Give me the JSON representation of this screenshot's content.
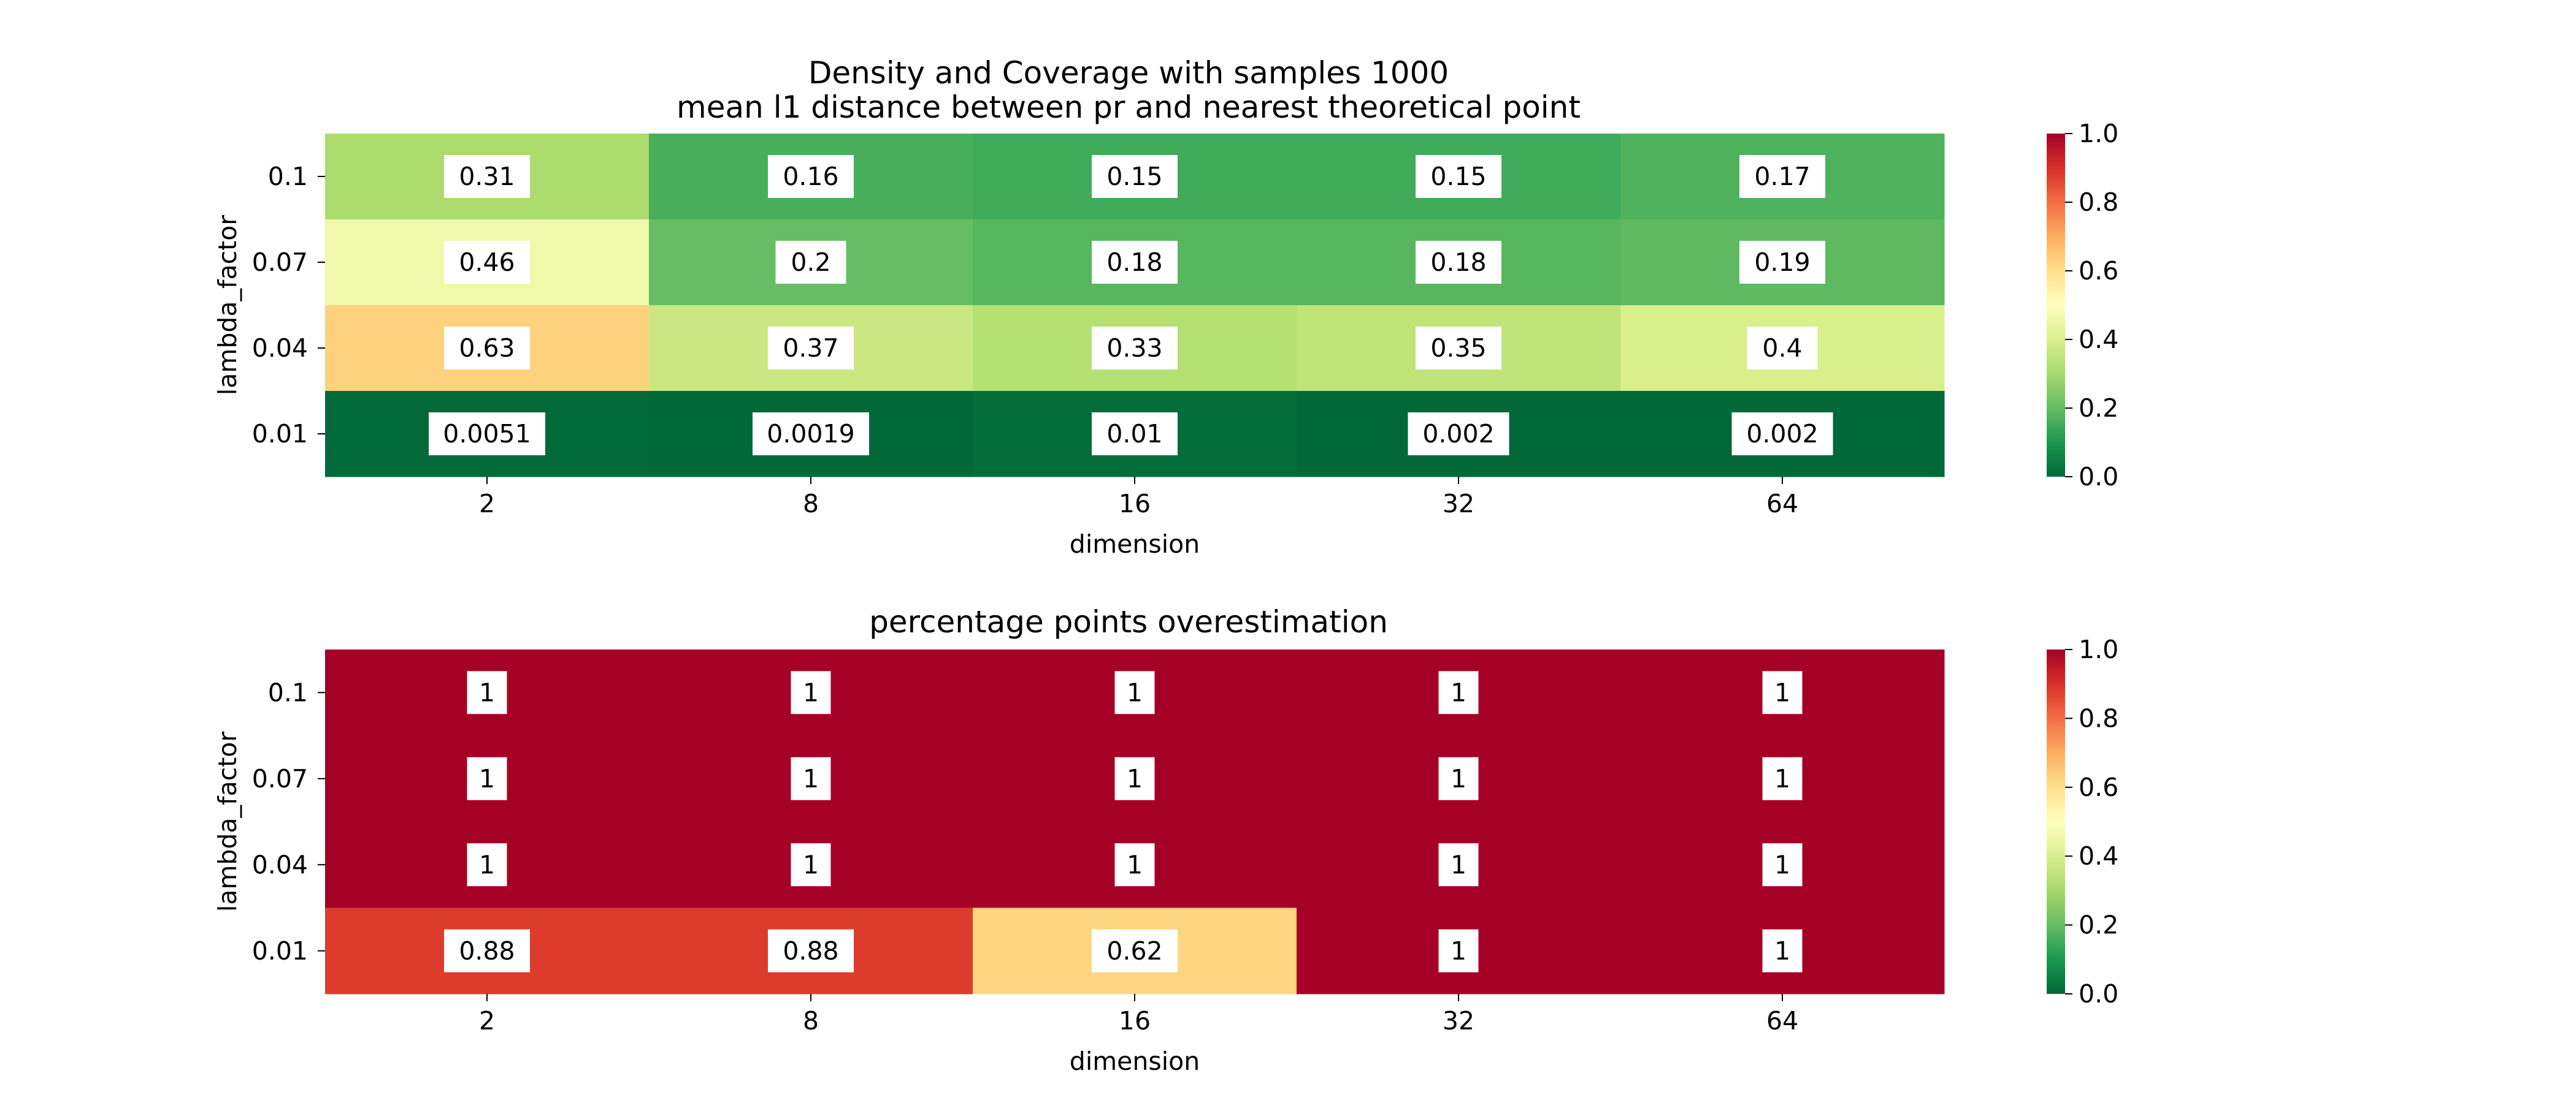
{
  "figure": {
    "title_line1": "Density and Coverage with samples 1000",
    "title_line2": "mean l1 distance between pr and nearest theoretical point"
  },
  "chart_data": [
    {
      "type": "heatmap",
      "title": "mean l1 distance between pr and nearest theoretical point",
      "xlabel": "dimension",
      "ylabel": "lambda_factor",
      "x_categories": [
        "2",
        "8",
        "16",
        "32",
        "64"
      ],
      "y_categories": [
        "0.1",
        "0.07",
        "0.04",
        "0.01"
      ],
      "values": [
        [
          0.31,
          0.16,
          0.15,
          0.15,
          0.17
        ],
        [
          0.46,
          0.2,
          0.18,
          0.18,
          0.19
        ],
        [
          0.63,
          0.37,
          0.33,
          0.35,
          0.4
        ],
        [
          0.0051,
          0.0019,
          0.01,
          0.002,
          0.002
        ]
      ],
      "cell_labels": [
        [
          "0.31",
          "0.16",
          "0.15",
          "0.15",
          "0.17"
        ],
        [
          "0.46",
          "0.2",
          "0.18",
          "0.18",
          "0.19"
        ],
        [
          "0.63",
          "0.37",
          "0.33",
          "0.35",
          "0.4"
        ],
        [
          "0.0051",
          "0.0019",
          "0.01",
          "0.002",
          "0.002"
        ]
      ],
      "colorscale": "RdYlGn_r",
      "vmin": 0.0,
      "vmax": 1.0,
      "colorbar_ticks": [
        "0.0",
        "0.2",
        "0.4",
        "0.6",
        "0.8",
        "1.0"
      ]
    },
    {
      "type": "heatmap",
      "title": "percentage points overestimation",
      "xlabel": "dimension",
      "ylabel": "lambda_factor",
      "x_categories": [
        "2",
        "8",
        "16",
        "32",
        "64"
      ],
      "y_categories": [
        "0.1",
        "0.07",
        "0.04",
        "0.01"
      ],
      "values": [
        [
          1,
          1,
          1,
          1,
          1
        ],
        [
          1,
          1,
          1,
          1,
          1
        ],
        [
          1,
          1,
          1,
          1,
          1
        ],
        [
          0.88,
          0.88,
          0.62,
          1,
          1
        ]
      ],
      "cell_labels": [
        [
          "1",
          "1",
          "1",
          "1",
          "1"
        ],
        [
          "1",
          "1",
          "1",
          "1",
          "1"
        ],
        [
          "1",
          "1",
          "1",
          "1",
          "1"
        ],
        [
          "0.88",
          "0.88",
          "0.62",
          "1",
          "1"
        ]
      ],
      "colorscale": "RdYlGn_r",
      "vmin": 0.0,
      "vmax": 1.0,
      "colorbar_ticks": [
        "0.0",
        "0.2",
        "0.4",
        "0.6",
        "0.8",
        "1.0"
      ]
    }
  ]
}
